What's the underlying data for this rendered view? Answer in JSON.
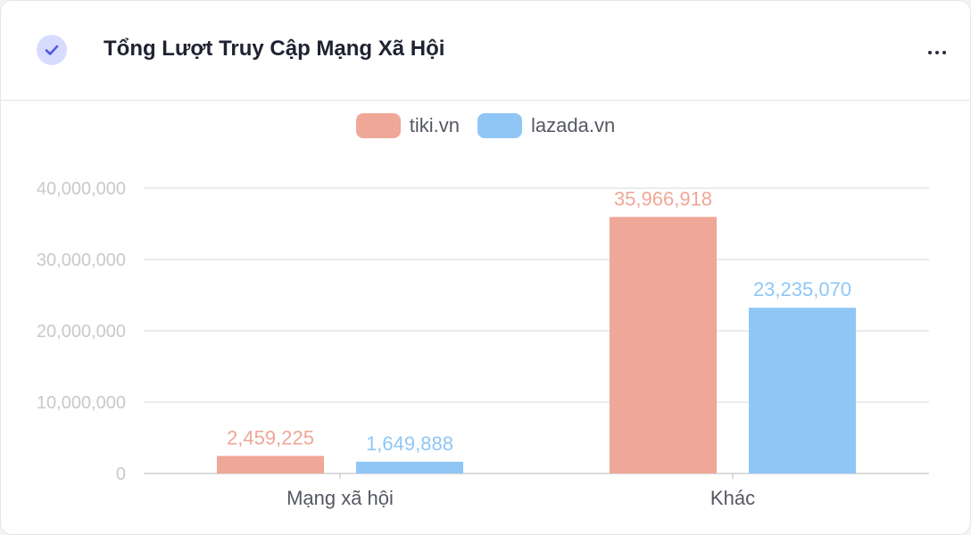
{
  "header": {
    "title": "Tổng Lượt Truy Cập Mạng Xã Hội",
    "check_icon": "check-circle-icon",
    "more_icon": "more-horizontal-icon"
  },
  "colors": {
    "tiki": "#efa797",
    "lazada": "#90c6f6",
    "check_bg": "#d7dcff",
    "check_fg": "#4f5be0"
  },
  "chart_data": {
    "type": "bar",
    "categories": [
      "Mạng xã hội",
      "Khác"
    ],
    "series": [
      {
        "name": "tiki.vn",
        "color": "#efa797",
        "values": [
          2459225,
          35966918
        ],
        "labels": [
          "2,459,225",
          "35,966,918"
        ]
      },
      {
        "name": "lazada.vn",
        "color": "#90c6f6",
        "values": [
          1649888,
          23235070
        ],
        "labels": [
          "1,649,888",
          "23,235,070"
        ]
      }
    ],
    "yticks": [
      0,
      10000000,
      20000000,
      30000000,
      40000000
    ],
    "ytick_labels": [
      "0",
      "10,000,000",
      "20,000,000",
      "30,000,000",
      "40,000,000"
    ],
    "ylim": [
      0,
      40000000
    ],
    "legend_position": "top-center",
    "grid": true,
    "title": "",
    "xlabel": "",
    "ylabel": ""
  }
}
